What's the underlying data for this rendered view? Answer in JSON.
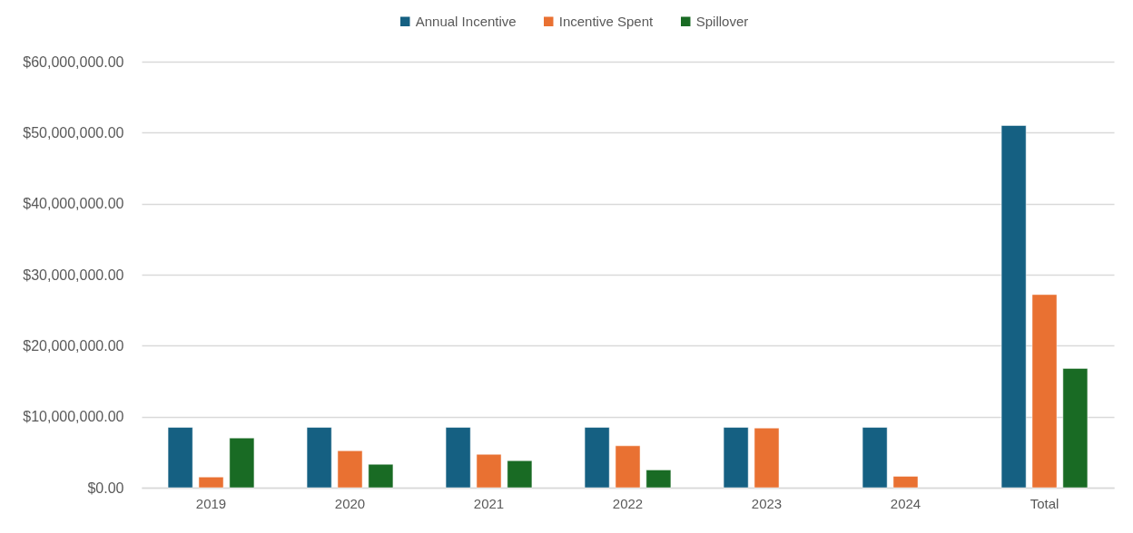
{
  "chart_data": {
    "type": "bar",
    "categories": [
      "2019",
      "2020",
      "2021",
      "2022",
      "2023",
      "2024",
      "Total"
    ],
    "series": [
      {
        "name": "Annual Incentive",
        "color": "#156082",
        "values": [
          8500000,
          8500000,
          8500000,
          8500000,
          8500000,
          8500000,
          51000000
        ]
      },
      {
        "name": "Incentive Spent",
        "color": "#e97132",
        "values": [
          1500000,
          5200000,
          4700000,
          5900000,
          8400000,
          1600000,
          27200000
        ]
      },
      {
        "name": "Spillover",
        "color": "#196b24",
        "values": [
          7000000,
          3300000,
          3800000,
          2500000,
          null,
          null,
          16800000
        ]
      }
    ],
    "ylim": [
      0,
      60000000
    ],
    "yticks": [
      {
        "value": 0,
        "label": "$0.00"
      },
      {
        "value": 10000000,
        "label": "$10,000,000.00"
      },
      {
        "value": 20000000,
        "label": "$20,000,000.00"
      },
      {
        "value": 30000000,
        "label": "$30,000,000.00"
      },
      {
        "value": 40000000,
        "label": "$40,000,000.00"
      },
      {
        "value": 50000000,
        "label": "$50,000,000.00"
      },
      {
        "value": 60000000,
        "label": "$60,000,000.00"
      }
    ],
    "grid": "y",
    "legend": "top"
  }
}
